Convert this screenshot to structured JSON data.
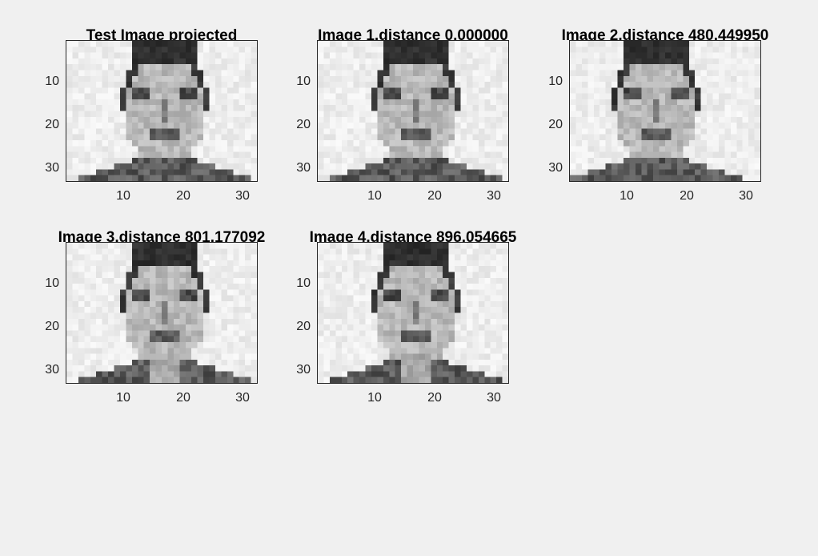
{
  "figure": {
    "subplots": [
      {
        "id": "test",
        "title": "Test Image projected",
        "variant": 0
      },
      {
        "id": "img1",
        "title": "Image 1,distance 0.000000",
        "variant": 0
      },
      {
        "id": "img2",
        "title": "Image 2,distance 480.449950",
        "variant": 1
      },
      {
        "id": "img3",
        "title": "Image 3,distance 801.177092",
        "variant": 2
      },
      {
        "id": "img4",
        "title": "Image 4,distance 896.054665",
        "variant": 3
      }
    ],
    "yticks": [
      "10",
      "20",
      "30"
    ],
    "xticks": [
      "10",
      "20",
      "30"
    ],
    "colormap": "gray"
  }
}
